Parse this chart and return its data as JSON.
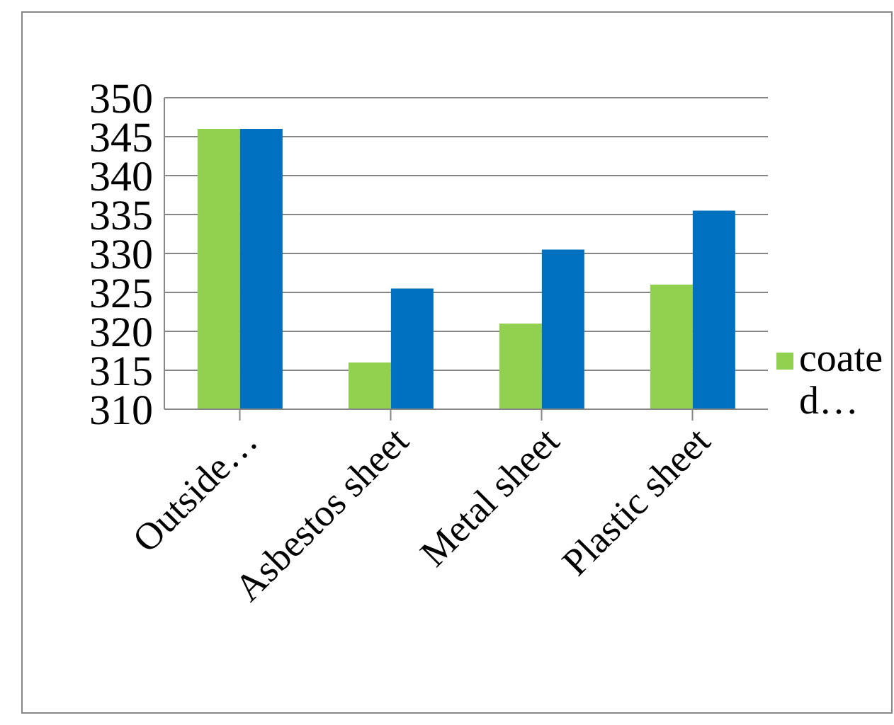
{
  "chart_data": {
    "type": "bar",
    "categories": [
      "Outside…",
      "Asbestos sheet",
      "Metal sheet",
      "Plastic sheet"
    ],
    "series": [
      {
        "name": "coated…",
        "color": "#92d050",
        "values": [
          346,
          316,
          321,
          326
        ]
      },
      {
        "color": "#0070c0",
        "values": [
          346,
          325.5,
          330.5,
          335.5
        ]
      }
    ],
    "ylim": [
      310,
      350
    ],
    "yticks": [
      310,
      315,
      320,
      325,
      330,
      335,
      340,
      345,
      350
    ],
    "grid": "y",
    "legend": "right"
  }
}
